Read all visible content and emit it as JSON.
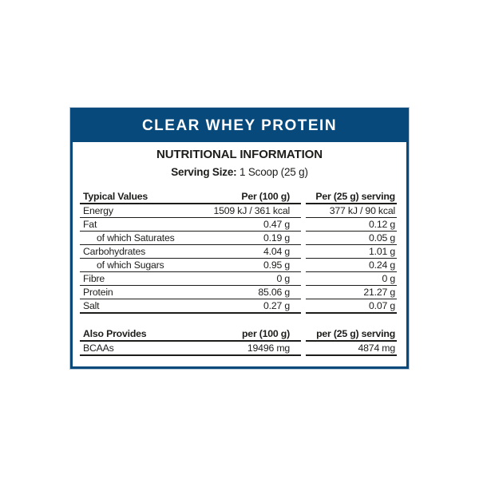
{
  "header": {
    "title": "CLEAR WHEY PROTEIN"
  },
  "section": {
    "title": "NUTRITIONAL INFORMATION",
    "serving_label": "Serving Size:",
    "serving_value": " 1 Scoop (25 g)"
  },
  "colors": {
    "brand_blue": "#07497b",
    "text": "#1d1d1b",
    "card_outline": "#b7c7d5"
  },
  "nutrition_table": {
    "headers": [
      "Typical Values",
      "Per (100 g)",
      "Per (25 g) serving"
    ],
    "rows": [
      {
        "label": "Energy",
        "per100": "1509 kJ / 361 kcal",
        "per25": "377 kJ / 90 kcal",
        "indent": false
      },
      {
        "label": "Fat",
        "per100": "0.47 g",
        "per25": "0.12 g",
        "indent": false
      },
      {
        "label": "of which Saturates",
        "per100": "0.19 g",
        "per25": "0.05 g",
        "indent": true
      },
      {
        "label": "Carbohydrates",
        "per100": "4.04 g",
        "per25": "1.01 g",
        "indent": false
      },
      {
        "label": "of which Sugars",
        "per100": "0.95 g",
        "per25": "0.24 g",
        "indent": true
      },
      {
        "label": "Fibre",
        "per100": "0 g",
        "per25": "0 g",
        "indent": false
      },
      {
        "label": "Protein",
        "per100": "85.06 g",
        "per25": "21.27 g",
        "indent": false
      },
      {
        "label": "Salt",
        "per100": "0.27 g",
        "per25": "0.07 g",
        "indent": false
      }
    ]
  },
  "also_provides_table": {
    "headers": [
      "Also Provides",
      "per (100 g)",
      "per (25 g) serving"
    ],
    "rows": [
      {
        "label": "BCAAs",
        "per100": "19496 mg",
        "per25": "4874 mg",
        "indent": false
      }
    ]
  }
}
